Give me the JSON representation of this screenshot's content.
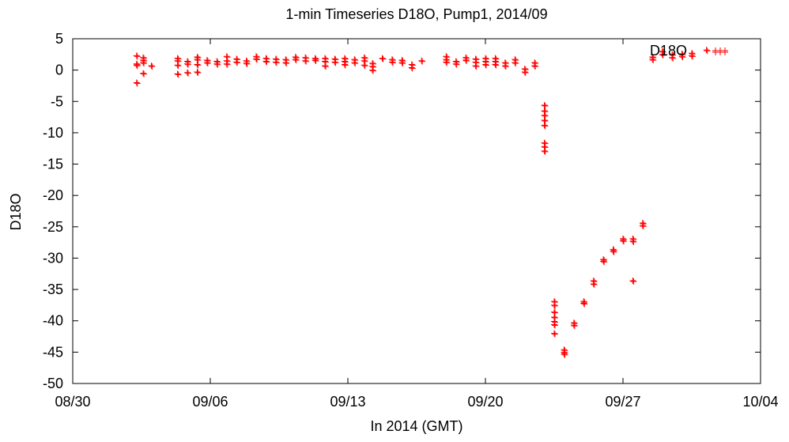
{
  "chart_data": {
    "type": "scatter",
    "title": "1-min Timeseries D18O, Pump1, 2014/09",
    "xlabel": "In 2014 (GMT)",
    "ylabel": "D18O",
    "x_axis": {
      "type": "date",
      "range": [
        "2014-08-30",
        "2014-10-04"
      ],
      "ticks": [
        {
          "date": "2014-08-30",
          "label": "08/30"
        },
        {
          "date": "2014-09-06",
          "label": "09/06"
        },
        {
          "date": "2014-09-13",
          "label": "09/13"
        },
        {
          "date": "2014-09-20",
          "label": "09/20"
        },
        {
          "date": "2014-09-27",
          "label": "09/27"
        },
        {
          "date": "2014-10-04",
          "label": "10/04"
        }
      ]
    },
    "y_axis": {
      "range": [
        -50,
        5
      ],
      "ticks": [
        5,
        0,
        -5,
        -10,
        -15,
        -20,
        -25,
        -30,
        -35,
        -40,
        -45,
        -50
      ]
    },
    "grid": false,
    "legend_placement": "top-right",
    "marker": "plus",
    "series": [
      {
        "name": "D18O",
        "color": "#ff0000",
        "points": [
          [
            "2014-09-02 06:00",
            2.3
          ],
          [
            "2014-09-02 06:00",
            1.0
          ],
          [
            "2014-09-02 06:00",
            0.8
          ],
          [
            "2014-09-02 06:00",
            -2.0
          ],
          [
            "2014-09-02 14:00",
            2.0
          ],
          [
            "2014-09-02 14:00",
            1.6
          ],
          [
            "2014-09-02 14:00",
            1.2
          ],
          [
            "2014-09-02 14:00",
            -0.5
          ],
          [
            "2014-09-03 00:00",
            0.7
          ],
          [
            "2014-09-04 08:00",
            1.9
          ],
          [
            "2014-09-04 08:00",
            1.5
          ],
          [
            "2014-09-04 08:00",
            0.8
          ],
          [
            "2014-09-04 08:00",
            -0.6
          ],
          [
            "2014-09-04 20:00",
            1.4
          ],
          [
            "2014-09-04 20:00",
            1.0
          ],
          [
            "2014-09-04 20:00",
            -0.4
          ],
          [
            "2014-09-05 08:00",
            2.1
          ],
          [
            "2014-09-05 08:00",
            1.7
          ],
          [
            "2014-09-05 08:00",
            0.9
          ],
          [
            "2014-09-05 08:00",
            -0.3
          ],
          [
            "2014-09-05 20:00",
            1.6
          ],
          [
            "2014-09-05 20:00",
            1.2
          ],
          [
            "2014-09-06 08:00",
            1.4
          ],
          [
            "2014-09-06 08:00",
            1.0
          ],
          [
            "2014-09-06 20:00",
            2.2
          ],
          [
            "2014-09-06 20:00",
            1.5
          ],
          [
            "2014-09-06 20:00",
            1.0
          ],
          [
            "2014-09-07 08:00",
            1.8
          ],
          [
            "2014-09-07 08:00",
            1.3
          ],
          [
            "2014-09-07 20:00",
            1.5
          ],
          [
            "2014-09-07 20:00",
            1.1
          ],
          [
            "2014-09-08 08:00",
            2.2
          ],
          [
            "2014-09-08 08:00",
            1.8
          ],
          [
            "2014-09-08 20:00",
            1.9
          ],
          [
            "2014-09-08 20:00",
            1.4
          ],
          [
            "2014-09-09 08:00",
            1.8
          ],
          [
            "2014-09-09 08:00",
            1.3
          ],
          [
            "2014-09-09 20:00",
            1.7
          ],
          [
            "2014-09-09 20:00",
            1.2
          ],
          [
            "2014-09-10 08:00",
            2.1
          ],
          [
            "2014-09-10 08:00",
            1.7
          ],
          [
            "2014-09-10 20:00",
            2.0
          ],
          [
            "2014-09-10 20:00",
            1.5
          ],
          [
            "2014-09-11 08:00",
            1.9
          ],
          [
            "2014-09-11 08:00",
            1.6
          ],
          [
            "2014-09-11 20:00",
            1.9
          ],
          [
            "2014-09-11 20:00",
            1.4
          ],
          [
            "2014-09-11 20:00",
            0.7
          ],
          [
            "2014-09-12 08:00",
            1.8
          ],
          [
            "2014-09-12 08:00",
            1.3
          ],
          [
            "2014-09-12 20:00",
            1.9
          ],
          [
            "2014-09-12 20:00",
            1.4
          ],
          [
            "2014-09-12 20:00",
            0.9
          ],
          [
            "2014-09-13 08:00",
            1.7
          ],
          [
            "2014-09-13 08:00",
            1.2
          ],
          [
            "2014-09-13 20:00",
            2.0
          ],
          [
            "2014-09-13 20:00",
            1.5
          ],
          [
            "2014-09-13 20:00",
            0.8
          ],
          [
            "2014-09-14 06:00",
            1.1
          ],
          [
            "2014-09-14 06:00",
            0.6
          ],
          [
            "2014-09-14 06:00",
            0.0
          ],
          [
            "2014-09-14 18:00",
            1.9
          ],
          [
            "2014-09-15 06:00",
            1.7
          ],
          [
            "2014-09-15 06:00",
            1.3
          ],
          [
            "2014-09-15 18:00",
            1.6
          ],
          [
            "2014-09-15 18:00",
            1.2
          ],
          [
            "2014-09-16 06:00",
            0.9
          ],
          [
            "2014-09-16 06:00",
            0.4
          ],
          [
            "2014-09-16 18:00",
            1.5
          ],
          [
            "2014-09-18 00:00",
            2.2
          ],
          [
            "2014-09-18 00:00",
            1.7
          ],
          [
            "2014-09-18 00:00",
            1.3
          ],
          [
            "2014-09-18 12:00",
            1.4
          ],
          [
            "2014-09-18 12:00",
            1.0
          ],
          [
            "2014-09-19 00:00",
            2.0
          ],
          [
            "2014-09-19 00:00",
            1.6
          ],
          [
            "2014-09-19 12:00",
            1.8
          ],
          [
            "2014-09-19 12:00",
            1.3
          ],
          [
            "2014-09-19 12:00",
            0.7
          ],
          [
            "2014-09-20 00:00",
            1.9
          ],
          [
            "2014-09-20 00:00",
            1.4
          ],
          [
            "2014-09-20 00:00",
            0.9
          ],
          [
            "2014-09-20 12:00",
            1.9
          ],
          [
            "2014-09-20 12:00",
            1.4
          ],
          [
            "2014-09-20 12:00",
            0.9
          ],
          [
            "2014-09-21 00:00",
            1.2
          ],
          [
            "2014-09-21 00:00",
            0.7
          ],
          [
            "2014-09-21 12:00",
            1.7
          ],
          [
            "2014-09-21 12:00",
            1.2
          ],
          [
            "2014-09-22 00:00",
            0.2
          ],
          [
            "2014-09-22 00:00",
            -0.3
          ],
          [
            "2014-09-22 12:00",
            1.2
          ],
          [
            "2014-09-22 12:00",
            0.7
          ],
          [
            "2014-09-23 00:00",
            -5.6
          ],
          [
            "2014-09-23 00:00",
            -6.5
          ],
          [
            "2014-09-23 00:00",
            -7.2
          ],
          [
            "2014-09-23 00:00",
            -8.0
          ],
          [
            "2014-09-23 00:00",
            -8.8
          ],
          [
            "2014-09-23 00:00",
            -11.6
          ],
          [
            "2014-09-23 00:00",
            -12.2
          ],
          [
            "2014-09-23 00:00",
            -12.9
          ],
          [
            "2014-09-23 12:00",
            -36.9
          ],
          [
            "2014-09-23 12:00",
            -37.5
          ],
          [
            "2014-09-23 12:00",
            -38.6
          ],
          [
            "2014-09-23 12:00",
            -39.4
          ],
          [
            "2014-09-23 12:00",
            -40.1
          ],
          [
            "2014-09-23 12:00",
            -40.6
          ],
          [
            "2014-09-23 12:00",
            -42.0
          ],
          [
            "2014-09-24 00:00",
            -44.6
          ],
          [
            "2014-09-24 00:00",
            -45.0
          ],
          [
            "2014-09-24 00:00",
            -45.3
          ],
          [
            "2014-09-24 12:00",
            -40.3
          ],
          [
            "2014-09-24 12:00",
            -40.7
          ],
          [
            "2014-09-25 00:00",
            -36.9
          ],
          [
            "2014-09-25 00:00",
            -37.2
          ],
          [
            "2014-09-25 12:00",
            -33.6
          ],
          [
            "2014-09-25 12:00",
            -34.1
          ],
          [
            "2014-09-26 00:00",
            -30.2
          ],
          [
            "2014-09-26 00:00",
            -30.5
          ],
          [
            "2014-09-26 12:00",
            -28.6
          ],
          [
            "2014-09-26 12:00",
            -28.9
          ],
          [
            "2014-09-27 00:00",
            -26.9
          ],
          [
            "2014-09-27 00:00",
            -27.2
          ],
          [
            "2014-09-27 12:00",
            -26.9
          ],
          [
            "2014-09-27 12:00",
            -27.3
          ],
          [
            "2014-09-27 12:00",
            -33.6
          ],
          [
            "2014-09-28 00:00",
            -24.4
          ],
          [
            "2014-09-28 00:00",
            -24.8
          ],
          [
            "2014-09-28 12:00",
            2.1
          ],
          [
            "2014-09-28 12:00",
            1.7
          ],
          [
            "2014-09-29 00:00",
            3.0
          ],
          [
            "2014-09-29 00:00",
            2.5
          ],
          [
            "2014-09-29 12:00",
            2.5
          ],
          [
            "2014-09-29 12:00",
            2.0
          ],
          [
            "2014-09-30 00:00",
            2.6
          ],
          [
            "2014-09-30 00:00",
            2.2
          ],
          [
            "2014-09-30 12:00",
            2.7
          ],
          [
            "2014-09-30 12:00",
            2.3
          ],
          [
            "2014-10-01 06:00",
            3.2
          ]
        ]
      }
    ]
  }
}
